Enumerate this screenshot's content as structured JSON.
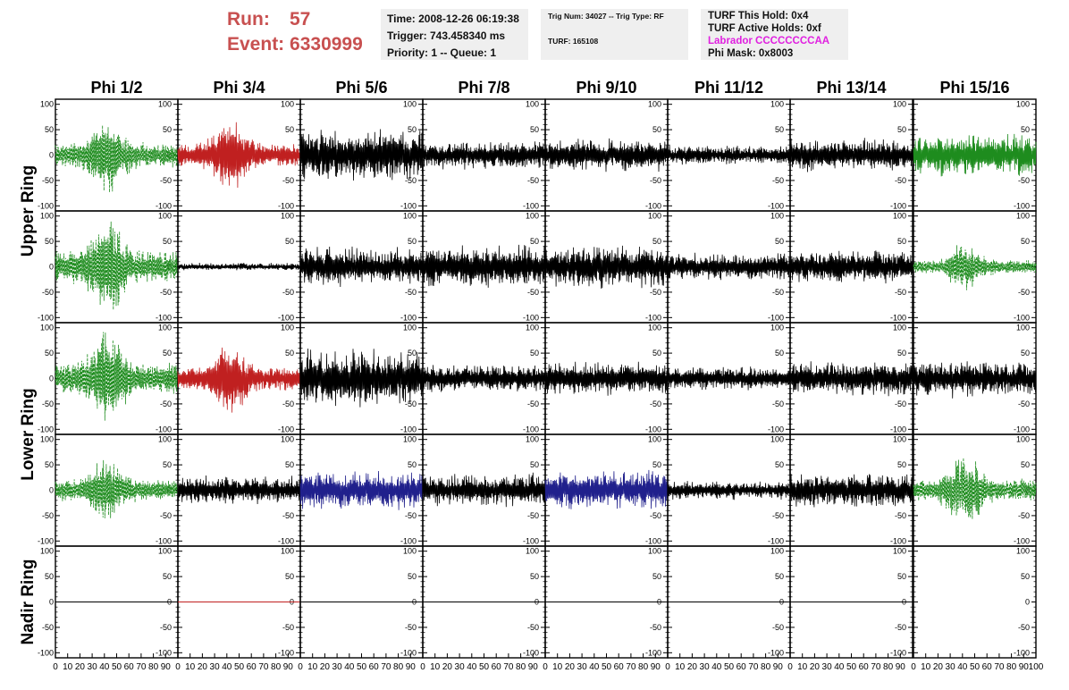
{
  "header": {
    "run_label": "Run:",
    "run_value": "57",
    "event_label": "Event:",
    "event_value": "6330999",
    "time": "Time: 2008-12-26 06:19:38",
    "trigger": "Trigger: 743.458340 ms",
    "priority": "Priority: 1 -- Queue: 1",
    "trig_num": "Trig Num: 34027 -- Trig Type: RF",
    "turf": "TURF: 165108",
    "turf_this_hold": "TURF This Hold: 0x4",
    "turf_active_holds": "TURF Active Holds: 0xf",
    "labrador": "Labrador CCCCCCCCAA",
    "phi_mask": "Phi Mask: 0x8003"
  },
  "colors": {
    "run_text": "#c85050",
    "labrador_text": "#e020e0",
    "trace_green": "#1e8c1e",
    "trace_red": "#c02020",
    "trace_black": "#000000",
    "trace_blue": "#20208c",
    "info_bg": "#efefef"
  },
  "chart_data": {
    "type": "line",
    "columns": [
      "Phi 1/2",
      "Phi 3/4",
      "Phi 5/6",
      "Phi 7/8",
      "Phi 9/10",
      "Phi 11/12",
      "Phi 13/14",
      "Phi 15/16"
    ],
    "rows": [
      "Upper Ring",
      "Upper Ring",
      "Lower Ring",
      "Lower Ring",
      "Nadir Ring"
    ],
    "row_labels": [
      "Upper Ring",
      "Lower Ring",
      "Nadir Ring"
    ],
    "xlim": [
      0,
      100
    ],
    "ylim": [
      -110,
      110
    ],
    "x_ticks": [
      0,
      10,
      20,
      30,
      40,
      50,
      60,
      70,
      80,
      90,
      100
    ],
    "y_ticks": [
      -100,
      -50,
      0,
      50,
      100
    ],
    "panels": [
      [
        {
          "color": "green",
          "style": "dashed",
          "amplitude": 90,
          "shape": "burst"
        },
        {
          "color": "red",
          "style": "solid",
          "amplitude": 80,
          "shape": "burst"
        },
        {
          "color": "black",
          "style": "solid",
          "amplitude": 55,
          "shape": "noise"
        },
        {
          "color": "black",
          "style": "solid",
          "amplitude": 30,
          "shape": "noise"
        },
        {
          "color": "black",
          "style": "solid",
          "amplitude": 35,
          "shape": "noise"
        },
        {
          "color": "black",
          "style": "solid",
          "amplitude": 20,
          "shape": "noise"
        },
        {
          "color": "black",
          "style": "solid",
          "amplitude": 35,
          "shape": "noise"
        },
        {
          "color": "green",
          "style": "solid",
          "amplitude": 45,
          "shape": "noise"
        }
      ],
      [
        {
          "color": "green",
          "style": "dashed",
          "amplitude": 110,
          "shape": "burst"
        },
        {
          "color": "black",
          "style": "solid",
          "amplitude": 8,
          "shape": "noise"
        },
        {
          "color": "black",
          "style": "solid",
          "amplitude": 40,
          "shape": "noise"
        },
        {
          "color": "black",
          "style": "solid",
          "amplitude": 45,
          "shape": "noise"
        },
        {
          "color": "black",
          "style": "solid",
          "amplitude": 45,
          "shape": "noise"
        },
        {
          "color": "black",
          "style": "solid",
          "amplitude": 30,
          "shape": "noise"
        },
        {
          "color": "black",
          "style": "solid",
          "amplitude": 35,
          "shape": "noise"
        },
        {
          "color": "green",
          "style": "dashed",
          "amplitude": 50,
          "shape": "burst"
        }
      ],
      [
        {
          "color": "green",
          "style": "dashed",
          "amplitude": 110,
          "shape": "burst"
        },
        {
          "color": "red",
          "style": "solid",
          "amplitude": 80,
          "shape": "burst"
        },
        {
          "color": "black",
          "style": "solid",
          "amplitude": 60,
          "shape": "noise"
        },
        {
          "color": "black",
          "style": "solid",
          "amplitude": 30,
          "shape": "noise"
        },
        {
          "color": "black",
          "style": "solid",
          "amplitude": 35,
          "shape": "noise"
        },
        {
          "color": "black",
          "style": "solid",
          "amplitude": 25,
          "shape": "noise"
        },
        {
          "color": "black",
          "style": "solid",
          "amplitude": 35,
          "shape": "noise"
        },
        {
          "color": "black",
          "style": "solid",
          "amplitude": 40,
          "shape": "noise"
        }
      ],
      [
        {
          "color": "green",
          "style": "dashed",
          "amplitude": 75,
          "shape": "burst"
        },
        {
          "color": "black",
          "style": "solid",
          "amplitude": 30,
          "shape": "noise"
        },
        {
          "color": "blue",
          "style": "solid",
          "amplitude": 40,
          "shape": "noise"
        },
        {
          "color": "black",
          "style": "solid",
          "amplitude": 35,
          "shape": "noise"
        },
        {
          "color": "blue",
          "style": "solid",
          "amplitude": 40,
          "shape": "noise"
        },
        {
          "color": "black",
          "style": "solid",
          "amplitude": 20,
          "shape": "noise"
        },
        {
          "color": "black",
          "style": "solid",
          "amplitude": 35,
          "shape": "noise"
        },
        {
          "color": "green",
          "style": "dashed",
          "amplitude": 80,
          "shape": "burst"
        }
      ],
      [
        {
          "color": "black",
          "style": "solid",
          "amplitude": 0,
          "shape": "flat"
        },
        {
          "color": "red",
          "style": "solid",
          "amplitude": 0,
          "shape": "flat"
        },
        {
          "color": "black",
          "style": "solid",
          "amplitude": 0,
          "shape": "flat"
        },
        {
          "color": "black",
          "style": "solid",
          "amplitude": 0,
          "shape": "flat"
        },
        {
          "color": "black",
          "style": "solid",
          "amplitude": 0,
          "shape": "flat"
        },
        {
          "color": "black",
          "style": "solid",
          "amplitude": 0,
          "shape": "flat"
        },
        {
          "color": "black",
          "style": "solid",
          "amplitude": 0,
          "shape": "flat"
        },
        {
          "color": "none",
          "style": "none",
          "amplitude": 0,
          "shape": "none"
        }
      ]
    ]
  }
}
